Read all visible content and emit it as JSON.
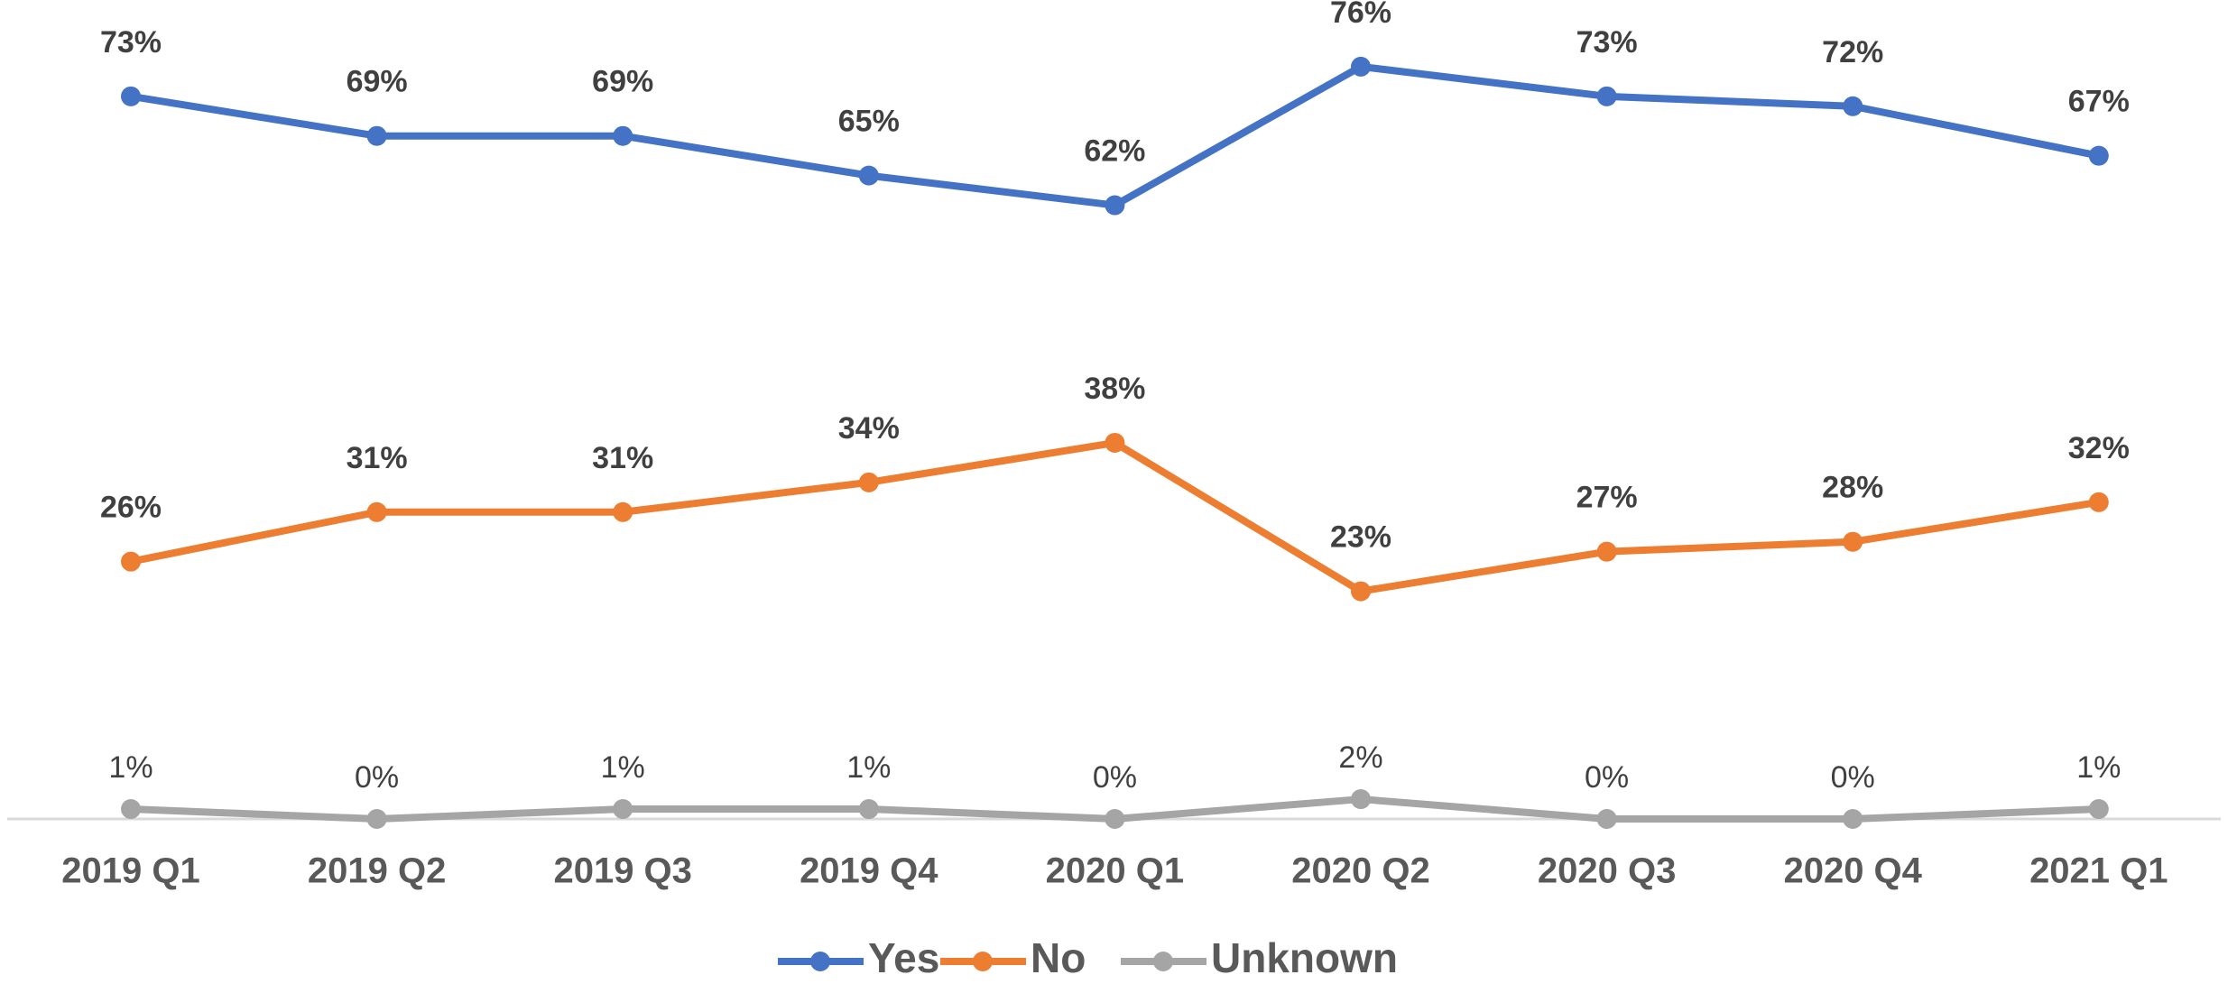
{
  "chart_data": {
    "type": "line",
    "categories": [
      "2019 Q1",
      "2019 Q2",
      "2019 Q3",
      "2019 Q4",
      "2020 Q1",
      "2020 Q2",
      "2020 Q3",
      "2020 Q4",
      "2021 Q1"
    ],
    "series": [
      {
        "name": "Yes",
        "color": "#4472c4",
        "values": [
          73,
          69,
          69,
          65,
          62,
          76,
          73,
          72,
          67
        ],
        "value_labels": [
          "73%",
          "69%",
          "69%",
          "65%",
          "62%",
          "76%",
          "73%",
          "72%",
          "67%"
        ]
      },
      {
        "name": "No",
        "color": "#ed7d31",
        "values": [
          26,
          31,
          31,
          34,
          38,
          23,
          27,
          28,
          32
        ],
        "value_labels": [
          "26%",
          "31%",
          "31%",
          "34%",
          "38%",
          "23%",
          "27%",
          "28%",
          "32%"
        ]
      },
      {
        "name": "Unknown",
        "color": "#a5a5a5",
        "values": [
          1,
          0,
          1,
          1,
          0,
          2,
          0,
          0,
          1
        ],
        "value_labels": [
          "1%",
          "0%",
          "1%",
          "1%",
          "0%",
          "2%",
          "0%",
          "0%",
          "1%"
        ]
      }
    ],
    "ylim": [
      0,
      80
    ],
    "legend": "bottom"
  }
}
